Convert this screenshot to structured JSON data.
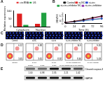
{
  "panel_labels": [
    "A",
    "B",
    "C",
    "D",
    "E"
  ],
  "chart_data": [
    {
      "type": "bar",
      "y_label": "Relative expression",
      "categories": [
        "Cytoplasm",
        "Nucleus"
      ],
      "series": [
        {
          "name": "circRNA",
          "color": "#e02020",
          "values": [
            82,
            18
          ]
        },
        {
          "name": "U6",
          "color": "#20a040",
          "values": [
            12,
            88
          ]
        }
      ],
      "ylim": [
        0,
        100
      ],
      "yticks": [
        0,
        50,
        100
      ],
      "grid": false,
      "legend": "top"
    },
    {
      "type": "line",
      "x_label": "Time (h)",
      "y_label": "OD450",
      "categories": [
        "0",
        "24",
        "48",
        "72",
        "96"
      ],
      "series": [
        {
          "name": "Control",
          "color": "#000000",
          "values": [
            0.2,
            0.45,
            0.8,
            1.2,
            1.6
          ]
        },
        {
          "name": "si-NC",
          "color": "#e02020",
          "values": [
            0.2,
            0.44,
            0.78,
            1.18,
            1.55
          ]
        },
        {
          "name": "si-circ",
          "color": "#2040d0",
          "values": [
            0.2,
            0.35,
            0.55,
            0.8,
            1.0
          ]
        },
        {
          "name": "si-circ+inhibitor NC",
          "color": "#20a040",
          "values": [
            0.2,
            0.36,
            0.57,
            0.82,
            1.05
          ]
        },
        {
          "name": "si-circ+inhibitor",
          "color": "#9030b0",
          "values": [
            0.2,
            0.42,
            0.72,
            1.05,
            1.4
          ]
        }
      ],
      "ylim": [
        0,
        2
      ],
      "yticks": [
        0,
        0.5,
        1,
        1.5,
        2
      ],
      "grid": false,
      "legend": "top",
      "marker": "circle"
    }
  ],
  "fluorescence": {
    "groups": [
      "Control",
      "si-NC",
      "si-circ",
      "si-circ+inhibitor NC",
      "si-circ+inhibitor"
    ]
  },
  "flow_cytometry": {
    "plots": [
      {
        "group": "Control",
        "upper_right": "6.12",
        "lower_right": "3.45"
      },
      {
        "group": "si-NC",
        "upper_right": "6.38",
        "lower_right": "3.61"
      },
      {
        "group": "si-circ",
        "upper_right": "15.7",
        "lower_right": "8.92"
      },
      {
        "group": "si-circ+inhibitor NC",
        "upper_right": "14.9",
        "lower_right": "8.40"
      },
      {
        "group": "si-circ+inhibitor",
        "upper_right": "9.26",
        "lower_right": "5.03"
      }
    ]
  },
  "western_blot": {
    "lanes": [
      "Control",
      "si-NC",
      "si-circ",
      "si-circ+inhibitor NC",
      "si-circ+inhibitor"
    ],
    "rows": [
      {
        "name": "Cleaved caspase-3",
        "values": [
          1.0,
          0.98,
          2.35,
          2.21,
          1.42
        ],
        "value_labels": [
          "1.00",
          "0.98",
          "2.35",
          "2.21",
          "1.42"
        ]
      },
      {
        "name": "GAPDH",
        "values": [
          1,
          1,
          1,
          1,
          1
        ]
      }
    ]
  }
}
